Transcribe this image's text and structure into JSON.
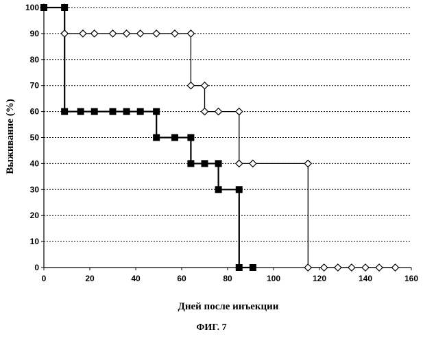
{
  "chart_data": {
    "type": "line",
    "xlabel": "Дней после инъекции",
    "ylabel": "Выживание (%)",
    "xlim": [
      0,
      160
    ],
    "ylim": [
      0,
      100
    ],
    "x_ticks": [
      0,
      20,
      40,
      60,
      80,
      100,
      120,
      140,
      160
    ],
    "y_ticks": [
      0,
      10,
      20,
      30,
      40,
      50,
      60,
      70,
      80,
      90,
      100
    ],
    "grid": "horizontal dotted",
    "series": [
      {
        "marker": "open-diamond",
        "step": true,
        "points": [
          [
            0,
            100
          ],
          [
            9,
            100
          ],
          [
            9,
            90
          ],
          [
            17,
            90
          ],
          [
            22,
            90
          ],
          [
            30,
            90
          ],
          [
            36,
            90
          ],
          [
            42,
            90
          ],
          [
            49,
            90
          ],
          [
            57,
            90
          ],
          [
            64,
            90
          ],
          [
            64,
            70
          ],
          [
            70,
            70
          ],
          [
            70,
            60
          ],
          [
            76,
            60
          ],
          [
            85,
            60
          ],
          [
            85,
            40
          ],
          [
            91,
            40
          ],
          [
            115,
            40
          ],
          [
            115,
            0
          ],
          [
            122,
            0
          ],
          [
            128,
            0
          ],
          [
            134,
            0
          ],
          [
            140,
            0
          ],
          [
            146,
            0
          ],
          [
            153,
            0
          ]
        ]
      },
      {
        "marker": "filled-square",
        "step": true,
        "points": [
          [
            0,
            100
          ],
          [
            9,
            100
          ],
          [
            9,
            60
          ],
          [
            16,
            60
          ],
          [
            22,
            60
          ],
          [
            30,
            60
          ],
          [
            36,
            60
          ],
          [
            42,
            60
          ],
          [
            49,
            60
          ],
          [
            49,
            50
          ],
          [
            57,
            50
          ],
          [
            64,
            50
          ],
          [
            64,
            40
          ],
          [
            70,
            40
          ],
          [
            76,
            40
          ],
          [
            76,
            30
          ],
          [
            85,
            30
          ],
          [
            85,
            0
          ],
          [
            91,
            0
          ]
        ]
      }
    ]
  },
  "caption": "ФИГ. 7"
}
